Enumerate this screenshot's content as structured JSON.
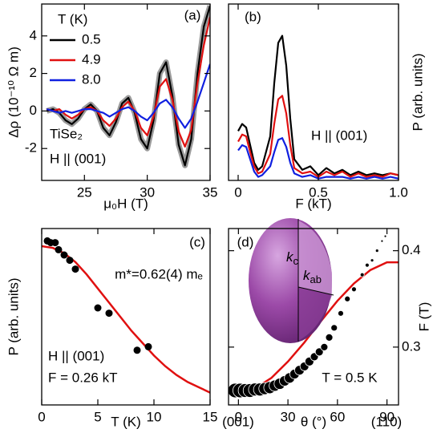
{
  "chart_data": [
    {
      "type": "line",
      "xlabel": "μ₀H (T)",
      "ylabel": "Δρ (10⁻¹⁰ Ω m)",
      "xlim": [
        21.6,
        35
      ],
      "ylim": [
        -3.7,
        5.7
      ],
      "xticks": [
        25,
        30,
        35
      ],
      "yticks": [
        -2,
        0,
        2,
        4
      ],
      "annotations": [
        "(a)",
        "T (K)",
        "TiSe₂",
        "H ||  (001)"
      ],
      "legend": "upper left",
      "x": [
        22,
        22.5,
        23,
        23.5,
        24,
        24.5,
        25,
        25.5,
        26,
        26.5,
        27,
        27.5,
        28,
        28.5,
        29,
        29.5,
        30,
        30.5,
        31,
        31.5,
        32,
        32.5,
        33,
        33.5,
        34,
        34.5,
        35
      ],
      "series": [
        {
          "name": "0.5",
          "color": "#000000",
          "highlight_color": "#9a9a9a",
          "values": [
            0.0,
            0.1,
            -0.1,
            -0.5,
            -0.7,
            -0.4,
            0.1,
            0.35,
            0.0,
            -0.9,
            -1.3,
            -0.6,
            0.4,
            0.7,
            -0.1,
            -1.5,
            -2.0,
            -0.5,
            2.0,
            2.6,
            0.8,
            -1.8,
            -2.9,
            -1.5,
            2.0,
            4.5,
            5.6
          ]
        },
        {
          "name": "4.9",
          "color": "#e01010",
          "values": [
            0.1,
            0.0,
            0.1,
            -0.2,
            -0.4,
            -0.2,
            0.1,
            0.2,
            0.0,
            -0.5,
            -0.8,
            -0.4,
            0.2,
            0.5,
            0.0,
            -0.9,
            -1.3,
            -0.3,
            1.3,
            1.7,
            0.6,
            -1.1,
            -1.9,
            -1.0,
            1.5,
            3.5,
            5.0
          ]
        },
        {
          "name": "8.0",
          "color": "#1020e0",
          "values": [
            0.1,
            0.0,
            -0.1,
            0.0,
            -0.1,
            0.0,
            0.1,
            0.1,
            0.0,
            -0.1,
            -0.3,
            -0.1,
            0.1,
            0.2,
            0.0,
            -0.3,
            -0.5,
            -0.1,
            0.4,
            0.6,
            0.2,
            -0.4,
            -0.9,
            -0.4,
            0.5,
            1.5,
            2.5
          ]
        }
      ]
    },
    {
      "type": "line",
      "xlabel": "F (kT)",
      "ylabel": "P (arb. units)",
      "y_axis_side": "right",
      "xlim": [
        -0.06,
        1.0
      ],
      "ylim": [
        0,
        1
      ],
      "xticks": [
        0,
        0.5,
        {
          "value": 1,
          "label": "1.0"
        }
      ],
      "annotations": [
        "(b)",
        "H ||  (001)"
      ],
      "x": [
        0,
        0.025,
        0.05,
        0.075,
        0.1,
        0.125,
        0.15,
        0.2,
        0.225,
        0.25,
        0.275,
        0.3,
        0.325,
        0.35,
        0.4,
        0.45,
        0.5,
        0.55,
        0.6,
        0.65,
        0.7,
        0.75,
        0.8,
        0.85,
        0.9,
        0.95,
        1.0
      ],
      "series": [
        {
          "color": "#000000",
          "values": [
            0.28,
            0.32,
            0.3,
            0.2,
            0.1,
            0.06,
            0.08,
            0.25,
            0.55,
            0.78,
            0.82,
            0.65,
            0.35,
            0.12,
            0.06,
            0.08,
            0.03,
            0.07,
            0.04,
            0.06,
            0.03,
            0.05,
            0.03,
            0.04,
            0.03,
            0.04,
            0.03
          ]
        },
        {
          "color": "#e01010",
          "values": [
            0.22,
            0.26,
            0.25,
            0.16,
            0.08,
            0.04,
            0.05,
            0.15,
            0.32,
            0.46,
            0.48,
            0.38,
            0.2,
            0.07,
            0.04,
            0.05,
            0.02,
            0.05,
            0.03,
            0.05,
            0.02,
            0.04,
            0.02,
            0.03,
            0.02,
            0.04,
            0.03
          ]
        },
        {
          "color": "#1020e0",
          "values": [
            0.17,
            0.2,
            0.19,
            0.12,
            0.05,
            0.02,
            0.03,
            0.08,
            0.16,
            0.23,
            0.24,
            0.19,
            0.1,
            0.04,
            0.02,
            0.03,
            0.01,
            0.02,
            0.02,
            0.02,
            0.01,
            0.02,
            0.01,
            0.02,
            0.01,
            0.02,
            0.01
          ]
        }
      ]
    },
    {
      "type": "scatter",
      "xlabel": "T (K)",
      "ylabel": "P (arb. units)",
      "xlim": [
        0,
        15
      ],
      "ylim": [
        0,
        1
      ],
      "xticks": [
        0,
        5,
        10,
        15
      ],
      "annotations": [
        "(c)",
        "m*=0.62(4) mₑ",
        "H ||  (001)",
        "F = 0.26 kT"
      ],
      "color": "#000000",
      "x": [
        0.5,
        0.8,
        1.2,
        1.5,
        2.0,
        2.5,
        3.0,
        5.0,
        6.0,
        8.5,
        9.5
      ],
      "values": [
        0.93,
        0.92,
        0.92,
        0.88,
        0.85,
        0.82,
        0.77,
        0.55,
        0.52,
        0.31,
        0.33
      ],
      "fit": {
        "color": "#e01010",
        "x": [
          0,
          1,
          2,
          3,
          4,
          5,
          6,
          7,
          8,
          9,
          10,
          11,
          12,
          13,
          14,
          15
        ],
        "values": [
          0.9,
          0.89,
          0.86,
          0.81,
          0.74,
          0.66,
          0.58,
          0.5,
          0.42,
          0.35,
          0.28,
          0.22,
          0.17,
          0.13,
          0.1,
          0.07
        ]
      }
    },
    {
      "type": "scatter",
      "xlabel": "θ (°)",
      "ylabel": "F (T)",
      "y_axis_side": "right",
      "xlim": [
        -6,
        97
      ],
      "ylim": [
        0.24,
        0.423
      ],
      "xticks": [
        0,
        30,
        60,
        90
      ],
      "yticks": [
        0.3,
        0.4
      ],
      "annotations": [
        "(d)",
        "T = 0.5 K",
        "(001)",
        "(110)"
      ],
      "inset_labels": [
        {
          "symbol": "k",
          "subscript": "c"
        },
        {
          "symbol": "k",
          "subscript": "ab"
        }
      ],
      "color": "#000000",
      "x": [
        -2,
        1,
        4,
        7,
        10,
        13,
        16,
        19,
        22,
        25,
        28,
        31,
        34,
        37,
        40,
        43,
        46,
        49,
        52,
        55,
        58,
        62,
        66,
        70,
        75,
        78,
        81,
        84,
        87,
        89
      ],
      "values": [
        0.255,
        0.255,
        0.255,
        0.255,
        0.256,
        0.256,
        0.257,
        0.258,
        0.26,
        0.262,
        0.265,
        0.268,
        0.272,
        0.276,
        0.28,
        0.285,
        0.29,
        0.295,
        0.3,
        0.31,
        0.32,
        0.335,
        0.35,
        0.36,
        0.375,
        0.385,
        0.39,
        0.4,
        0.41,
        0.415
      ],
      "sizes": [
        18,
        18,
        17,
        17,
        16,
        16,
        15,
        15,
        14,
        14,
        13,
        13,
        12,
        12,
        11,
        11,
        10,
        10,
        9,
        9,
        8,
        7,
        7,
        6,
        5,
        5,
        4,
        4,
        3,
        3
      ],
      "fit": {
        "color": "#e01010",
        "x": [
          -6,
          0,
          10,
          20,
          30,
          40,
          50,
          60,
          70,
          80,
          90,
          97
        ],
        "values": [
          0.252,
          0.252,
          0.257,
          0.268,
          0.285,
          0.305,
          0.327,
          0.348,
          0.366,
          0.38,
          0.388,
          0.388
        ]
      }
    }
  ]
}
